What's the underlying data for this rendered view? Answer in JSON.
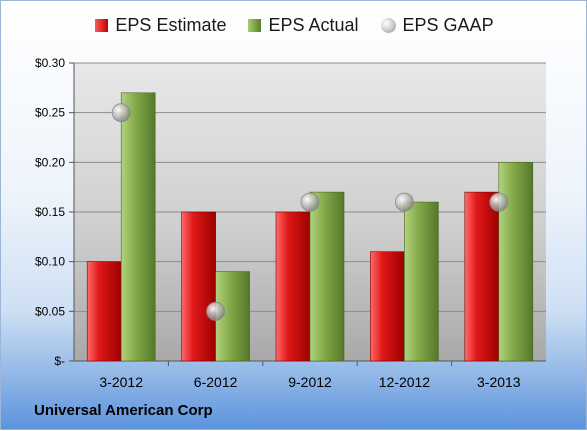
{
  "legend": {
    "estimate": "EPS Estimate",
    "actual": "EPS Actual",
    "gaap": "EPS GAAP"
  },
  "company": "Universal American Corp",
  "colors": {
    "estimate": "#d11a1a",
    "actual": "#7fa344",
    "gaap": "#b8b8b8"
  },
  "chart_data": {
    "type": "bar",
    "categories": [
      "3-2012",
      "6-2012",
      "9-2012",
      "12-2012",
      "3-2013"
    ],
    "series": [
      {
        "name": "EPS Estimate",
        "values": [
          0.1,
          0.15,
          0.15,
          0.11,
          0.17
        ]
      },
      {
        "name": "EPS Actual",
        "values": [
          0.27,
          0.09,
          0.17,
          0.16,
          0.2
        ]
      },
      {
        "name": "EPS GAAP",
        "values": [
          0.25,
          0.05,
          0.16,
          0.16,
          0.16
        ],
        "style": "marker"
      }
    ],
    "ylim": [
      0,
      0.3
    ],
    "yticks": [
      0,
      0.05,
      0.1,
      0.15,
      0.2,
      0.25,
      0.3
    ],
    "ytick_labels": [
      "$-",
      "$0.05",
      "$0.10",
      "$0.15",
      "$0.20",
      "$0.25",
      "$0.30"
    ],
    "grid": true,
    "legend_position": "top"
  }
}
